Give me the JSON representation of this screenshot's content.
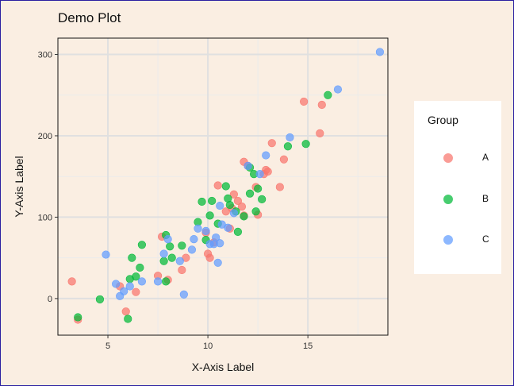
{
  "chart_data": {
    "type": "scatter",
    "title": "Demo Plot",
    "xlabel": "X-Axis Label",
    "ylabel": "Y-Axis Label",
    "xlim": [
      2.5,
      19
    ],
    "ylim": [
      -45,
      320
    ],
    "x_ticks": [
      5,
      10,
      15
    ],
    "y_ticks": [
      0,
      100,
      200,
      300
    ],
    "grid": true,
    "legend": {
      "title": "Group",
      "position": "right"
    },
    "series": [
      {
        "name": "A",
        "color": "#f8766d",
        "points": [
          [
            3.2,
            21
          ],
          [
            3.5,
            -26
          ],
          [
            5.6,
            15
          ],
          [
            5.9,
            -16
          ],
          [
            6.4,
            8
          ],
          [
            7.5,
            28
          ],
          [
            7.7,
            76
          ],
          [
            8.0,
            23
          ],
          [
            8.7,
            35
          ],
          [
            8.9,
            50
          ],
          [
            9.9,
            81
          ],
          [
            10.0,
            55
          ],
          [
            10.1,
            50
          ],
          [
            10.3,
            69
          ],
          [
            10.5,
            139
          ],
          [
            10.9,
            107
          ],
          [
            11.1,
            86
          ],
          [
            11.2,
            111
          ],
          [
            11.3,
            128
          ],
          [
            11.5,
            120
          ],
          [
            11.7,
            113
          ],
          [
            11.8,
            102
          ],
          [
            11.8,
            168
          ],
          [
            12.0,
            163
          ],
          [
            12.4,
            137
          ],
          [
            12.5,
            103
          ],
          [
            12.8,
            153
          ],
          [
            12.9,
            158
          ],
          [
            13.0,
            156
          ],
          [
            13.2,
            191
          ],
          [
            13.6,
            137
          ],
          [
            13.8,
            171
          ],
          [
            14.8,
            242
          ],
          [
            15.6,
            203
          ],
          [
            15.7,
            238
          ]
        ]
      },
      {
        "name": "B",
        "color": "#00ba38",
        "points": [
          [
            3.5,
            -23
          ],
          [
            4.6,
            -1
          ],
          [
            6.0,
            -25
          ],
          [
            6.1,
            24
          ],
          [
            6.2,
            50
          ],
          [
            6.4,
            27
          ],
          [
            6.6,
            38
          ],
          [
            6.7,
            66
          ],
          [
            7.8,
            46
          ],
          [
            7.9,
            78
          ],
          [
            7.9,
            21
          ],
          [
            8.1,
            64
          ],
          [
            8.2,
            50
          ],
          [
            8.7,
            65
          ],
          [
            9.5,
            94
          ],
          [
            9.7,
            119
          ],
          [
            9.9,
            72
          ],
          [
            10.1,
            102
          ],
          [
            10.2,
            120
          ],
          [
            10.5,
            92
          ],
          [
            10.9,
            138
          ],
          [
            11.0,
            123
          ],
          [
            11.1,
            115
          ],
          [
            11.4,
            107
          ],
          [
            11.5,
            82
          ],
          [
            11.8,
            101
          ],
          [
            12.1,
            129
          ],
          [
            12.1,
            161
          ],
          [
            12.3,
            153
          ],
          [
            12.4,
            107
          ],
          [
            12.5,
            135
          ],
          [
            12.7,
            122
          ],
          [
            14.0,
            187
          ],
          [
            14.9,
            190
          ],
          [
            16.0,
            250
          ]
        ]
      },
      {
        "name": "C",
        "color": "#619cff",
        "points": [
          [
            4.9,
            54
          ],
          [
            5.4,
            18
          ],
          [
            5.6,
            3
          ],
          [
            5.8,
            9
          ],
          [
            6.1,
            15
          ],
          [
            6.7,
            21
          ],
          [
            7.5,
            21
          ],
          [
            7.8,
            55
          ],
          [
            8.0,
            73
          ],
          [
            8.6,
            46
          ],
          [
            8.8,
            5
          ],
          [
            9.2,
            60
          ],
          [
            9.3,
            73
          ],
          [
            9.5,
            86
          ],
          [
            9.9,
            83
          ],
          [
            10.1,
            67
          ],
          [
            10.3,
            67
          ],
          [
            10.4,
            75
          ],
          [
            10.5,
            44
          ],
          [
            10.6,
            68
          ],
          [
            10.6,
            114
          ],
          [
            10.7,
            91
          ],
          [
            11.0,
            87
          ],
          [
            11.3,
            105
          ],
          [
            12.0,
            163
          ],
          [
            12.6,
            153
          ],
          [
            12.9,
            176
          ],
          [
            14.1,
            198
          ],
          [
            16.5,
            257
          ],
          [
            18.6,
            303
          ]
        ]
      }
    ]
  }
}
